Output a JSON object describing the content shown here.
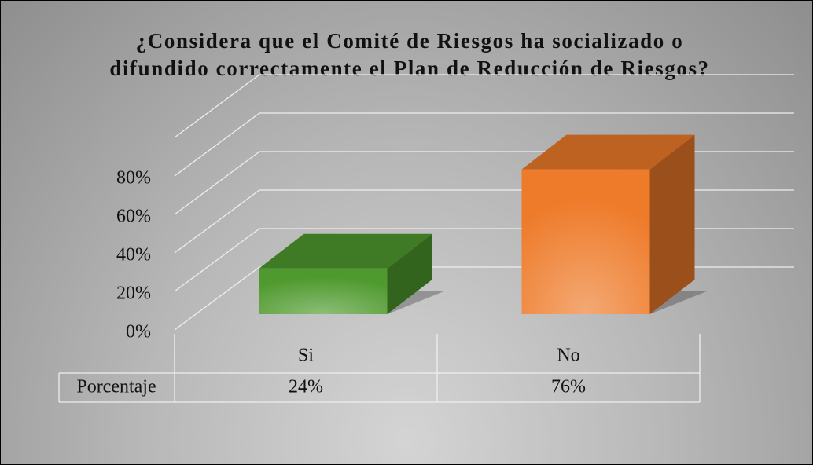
{
  "chart_data": {
    "type": "bar3d",
    "title": "¿Considera que el Comité de Riesgos ha socializado o difundido correctamente el Plan de Reducción de Riesgos?",
    "categories": [
      "Si",
      "No"
    ],
    "series": [
      {
        "name": "Porcentaje",
        "colors": [
          "#4f9a2e",
          "#ee7b2a"
        ],
        "values": [
          24,
          76
        ],
        "value_labels": [
          "24%",
          "76%"
        ]
      }
    ],
    "ylim": [
      0,
      100
    ],
    "yticks": [
      {
        "value": 0,
        "label": "0%"
      },
      {
        "value": 20,
        "label": "20%"
      },
      {
        "value": 40,
        "label": "40%"
      },
      {
        "value": 60,
        "label": "60%"
      },
      {
        "value": 80,
        "label": "80%"
      }
    ],
    "grid": true
  }
}
